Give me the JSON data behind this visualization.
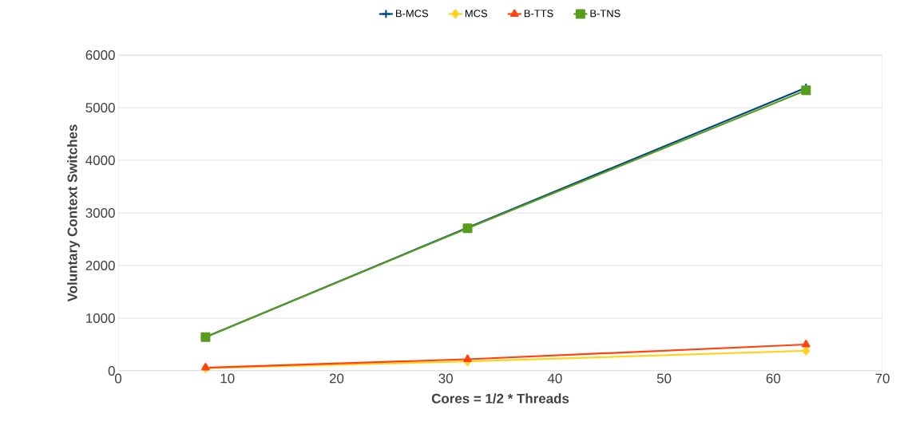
{
  "chart_data": {
    "type": "line",
    "xlabel": "Cores = 1/2 * Threads",
    "ylabel": "Voluntary Context Switches",
    "x": [
      8,
      32,
      63
    ],
    "series": [
      {
        "name": "B-MCS",
        "color": "#004586",
        "marker": "cross",
        "values": [
          640,
          2720,
          5380
        ]
      },
      {
        "name": "MCS",
        "color": "#ffd320",
        "marker": "diamond",
        "values": [
          50,
          180,
          380
        ]
      },
      {
        "name": "B-TTS",
        "color": "#ff420e",
        "marker": "triangle",
        "values": [
          60,
          220,
          500
        ]
      },
      {
        "name": "B-TNS",
        "color": "#579d1c",
        "marker": "square",
        "values": [
          640,
          2710,
          5330
        ]
      }
    ],
    "xlim": [
      0,
      70
    ],
    "xticks": [
      0,
      10,
      20,
      30,
      40,
      50,
      60,
      70
    ],
    "ylim": [
      0,
      6000
    ],
    "yticks": [
      0,
      1000,
      2000,
      3000,
      4000,
      5000,
      6000
    ],
    "grid": "y",
    "legend": "top",
    "line_style": "solid"
  }
}
